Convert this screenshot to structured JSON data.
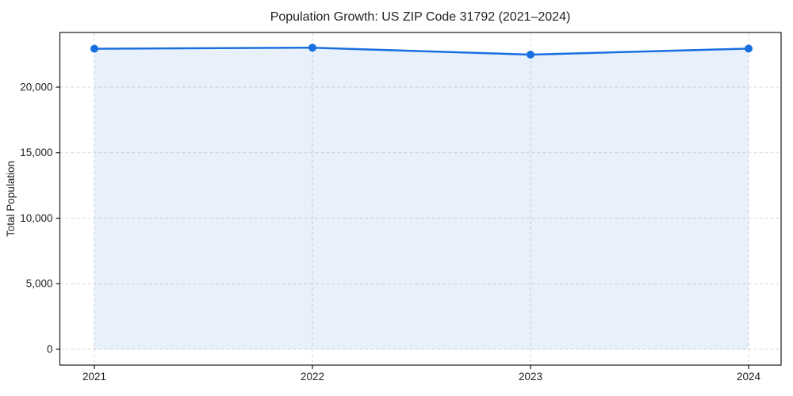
{
  "figure": {
    "background": "#ffffff"
  },
  "chart_data": {
    "type": "line",
    "title": "Population Growth: US ZIP Code 31792 (2021–2024)",
    "xlabel": "",
    "ylabel": "Total Population",
    "categories": [
      "2021",
      "2022",
      "2023",
      "2024"
    ],
    "series": [
      {
        "name": "Total Population",
        "values": [
          22930,
          23010,
          22480,
          22940
        ]
      }
    ],
    "ylim": [
      -1210,
      24170
    ],
    "yticks": {
      "values": [
        0,
        5000,
        10000,
        15000,
        20000
      ],
      "labels": [
        "0",
        "5,000",
        "10,000",
        "15,000",
        "20,000"
      ]
    },
    "grid": {
      "show": true,
      "style": "dashed",
      "axes": "both"
    },
    "legend": "none",
    "marker": "circle",
    "area_fill": true,
    "colors": {
      "line": "#1a6fe0",
      "fill": "#1a6fe0",
      "fill_opacity": 0.1,
      "grid": "#d9d9d9",
      "spine": "#1a1a1a",
      "text": "#1f1f1f"
    }
  }
}
